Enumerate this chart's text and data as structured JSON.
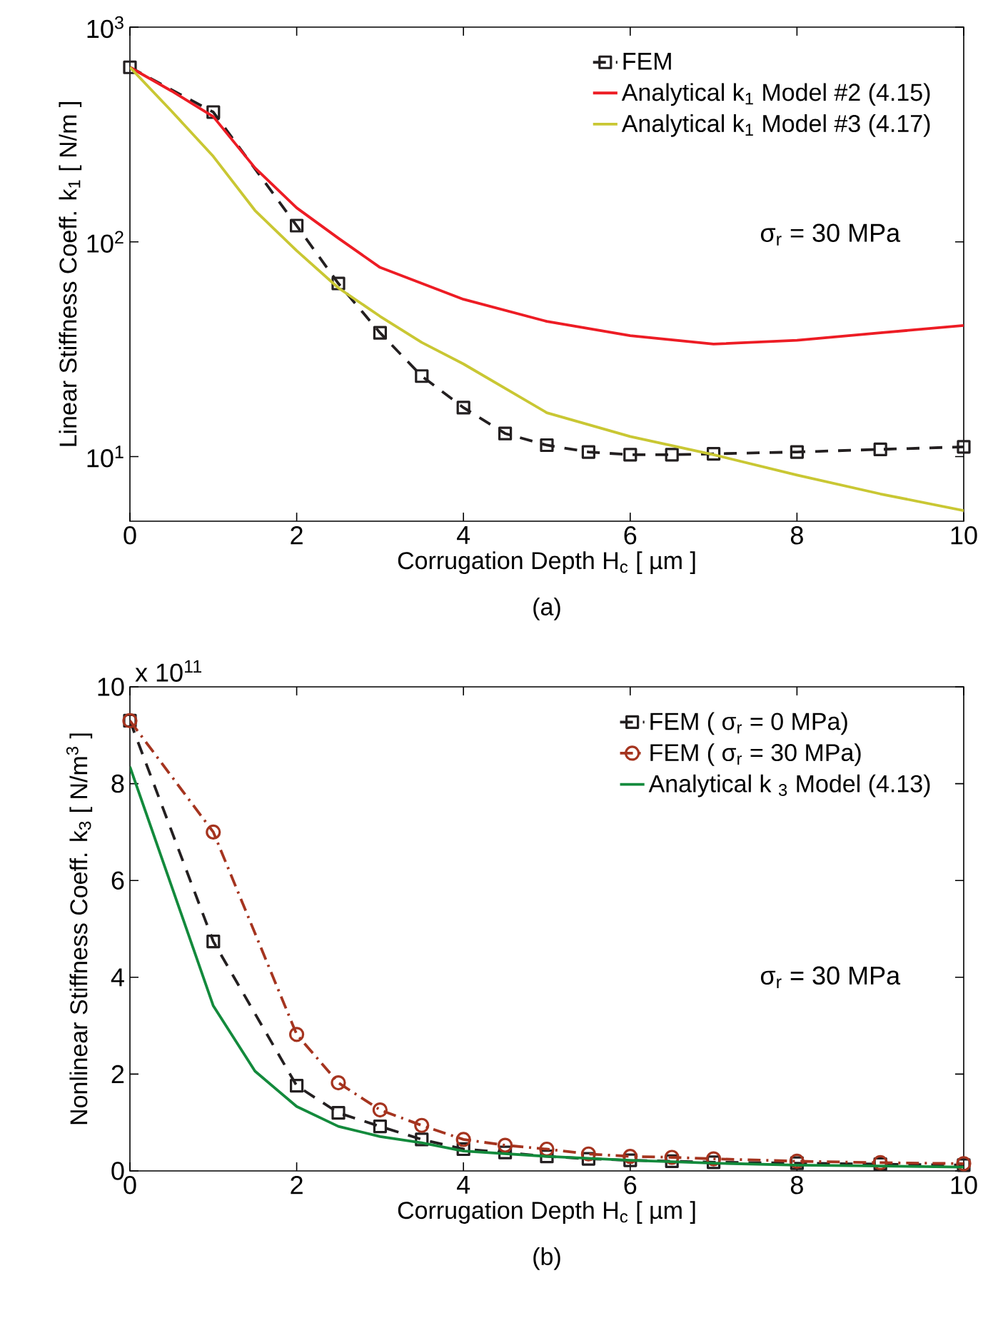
{
  "chart_data": [
    {
      "type": "line",
      "subtitle": "(a)",
      "xlabel": "Corrugation Depth H$_{c}$  [ µm ]",
      "ylabel": "Linear Stiffness Coeff. k$_{1}$  [ N/m ]",
      "log": "y",
      "xlim": [
        0,
        10
      ],
      "xticks": [
        0,
        2,
        4,
        6,
        8,
        10
      ],
      "ylim": [
        5,
        1000
      ],
      "yticks": [
        {
          "value": 10,
          "label": "10$^{1}$"
        },
        {
          "value": 100,
          "label": "10$^{2}$"
        },
        {
          "value": 1000,
          "label": "10$^{3}$"
        }
      ],
      "legend": "top right",
      "grid": false,
      "annotations": [
        "σ$_{r}$ = 30 MPa"
      ],
      "series": [
        {
          "name": "FEM",
          "color": "#231f20",
          "marker": "square",
          "line_style": "dashed",
          "x": [
            0,
            1,
            2,
            2.5,
            3,
            3.5,
            4,
            4.5,
            5,
            5.5,
            6,
            6.5,
            7,
            8,
            9,
            10
          ],
          "values": [
            650,
            402,
            119,
            64,
            37.7,
            23.7,
            16.9,
            12.8,
            11.3,
            10.5,
            10.2,
            10.2,
            10.3,
            10.5,
            10.8,
            11.1
          ]
        },
        {
          "name": "Analytical k$_{1}$  Model #2 (4.15)",
          "color": "#ed1c24",
          "marker": "none",
          "line_style": "solid",
          "x": [
            0,
            0.5,
            1,
            1.5,
            2,
            2.5,
            3,
            4,
            5,
            6,
            7,
            8,
            9,
            10
          ],
          "values": [
            650,
            504,
            383,
            221,
            144,
            104,
            76,
            54,
            42.6,
            36.6,
            33.4,
            34.8,
            37.7,
            40.8
          ]
        },
        {
          "name": "Analytical k$_{1}$  Model #3 (4.17)",
          "color": "#c9c733",
          "marker": "none",
          "line_style": "solid",
          "x": [
            0,
            0.5,
            1,
            1.5,
            2,
            2.5,
            3,
            3.5,
            4,
            5,
            6,
            7,
            8,
            9,
            10
          ],
          "values": [
            650,
            406,
            250,
            140,
            91,
            61,
            45,
            34,
            27,
            16,
            12.4,
            10.2,
            8.2,
            6.7,
            5.6
          ]
        }
      ]
    },
    {
      "type": "line",
      "subtitle": "(b)",
      "xlabel": "Corrugation Depth H$_{c}$  [ µm ]",
      "ylabel": "Nonlinear Stiffness Coeff. k$_{3}$  [ N/m$^{3}$ ]",
      "xlim": [
        0,
        10
      ],
      "xticks": [
        0,
        2,
        4,
        6,
        8,
        10
      ],
      "ylim": [
        0,
        10
      ],
      "yticks": [
        0,
        2,
        4,
        6,
        8,
        10
      ],
      "legend": "top right",
      "grid": false,
      "annotations": [
        "x 10$^{11}$",
        "σ$_{r}$ = 30 MPa"
      ],
      "series": [
        {
          "name": "FEM (  σ$_{r}$ = 0 MPa)",
          "color": "#231f20",
          "marker": "square",
          "line_style": "dashed",
          "x": [
            0,
            1,
            2,
            2.5,
            3,
            3.5,
            4,
            4.5,
            5,
            5.5,
            6,
            6.5,
            7,
            8,
            9,
            10
          ],
          "values": [
            9.3,
            4.74,
            1.76,
            1.2,
            0.92,
            0.65,
            0.45,
            0.38,
            0.3,
            0.25,
            0.22,
            0.2,
            0.18,
            0.16,
            0.14,
            0.12
          ]
        },
        {
          "name": "FEM (  σ$_{r}$ = 30 MPa)",
          "color": "#a5341f",
          "marker": "circle",
          "line_style": "dashdot",
          "x": [
            0,
            1,
            2,
            2.5,
            3,
            3.5,
            4,
            4.5,
            5,
            5.5,
            6,
            6.5,
            7,
            8,
            9,
            10
          ],
          "values": [
            9.3,
            7.0,
            2.82,
            1.82,
            1.26,
            0.94,
            0.65,
            0.53,
            0.45,
            0.35,
            0.3,
            0.28,
            0.25,
            0.2,
            0.17,
            0.15
          ]
        },
        {
          "name": "Analytical k $_{3}$ Model (4.13)",
          "color": "#138a3c",
          "marker": "none",
          "line_style": "solid",
          "x": [
            0,
            1,
            1.5,
            2,
            2.5,
            3,
            3.5,
            4,
            5,
            6,
            7,
            8,
            9,
            10
          ],
          "values": [
            8.35,
            3.41,
            2.06,
            1.33,
            0.92,
            0.71,
            0.58,
            0.41,
            0.3,
            0.22,
            0.16,
            0.12,
            0.1,
            0.08
          ]
        }
      ]
    }
  ]
}
